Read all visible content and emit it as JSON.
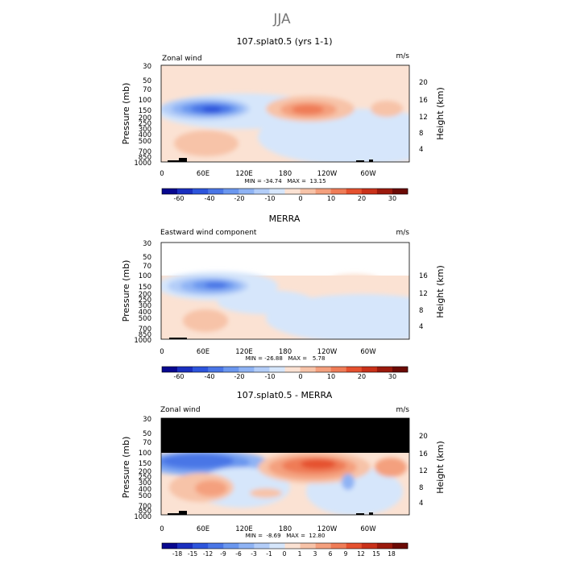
{
  "suptitle": "JJA",
  "chart_data": [
    {
      "type": "heatmap",
      "title": "107.splat0.5 (yrs 1-1)",
      "left_label": "Zonal wind",
      "right_label": "m/s",
      "ylabel": "Pressure (mb)",
      "ylabel_right": "Height (km)",
      "yticks": [
        "30",
        "50",
        "70",
        "100",
        "150",
        "200",
        "250",
        "300",
        "400",
        "500",
        "700",
        "850",
        "1000"
      ],
      "yticks_right": [
        "20",
        "16",
        "12",
        "8",
        "4"
      ],
      "xticks": [
        "0",
        "60E",
        "120E",
        "180",
        "120W",
        "60W"
      ],
      "stats": "MIN = -34.74   MAX =  13.15",
      "colorbar": [
        "-60",
        "-40",
        "-20",
        "-10",
        "0",
        "10",
        "20",
        "30"
      ],
      "ylim_mb": [
        1000,
        30
      ],
      "masked_above_mb": null
    },
    {
      "type": "heatmap",
      "title": "MERRA",
      "left_label": "Eastward wind component",
      "right_label": "m/s",
      "ylabel": "Pressure (mb)",
      "ylabel_right": "Height (km)",
      "yticks": [
        "30",
        "50",
        "70",
        "100",
        "150",
        "200",
        "250",
        "300",
        "400",
        "500",
        "700",
        "850",
        "1000"
      ],
      "yticks_right": [
        "16",
        "12",
        "8",
        "4"
      ],
      "xticks": [
        "0",
        "60E",
        "120E",
        "180",
        "120W",
        "60W"
      ],
      "stats": "MIN = -26.88   MAX =   5.78",
      "colorbar": [
        "-60",
        "-40",
        "-20",
        "-10",
        "0",
        "10",
        "20",
        "30"
      ],
      "ylim_mb": [
        1000,
        30
      ],
      "masked_above_mb": 100
    },
    {
      "type": "heatmap",
      "title": "107.splat0.5 - MERRA",
      "left_label": "Zonal wind",
      "right_label": "m/s",
      "ylabel": "Pressure (mb)",
      "ylabel_right": "Height (km)",
      "yticks": [
        "30",
        "50",
        "70",
        "100",
        "150",
        "200",
        "250",
        "300",
        "400",
        "500",
        "700",
        "850",
        "1000"
      ],
      "yticks_right": [
        "20",
        "16",
        "12",
        "8",
        "4"
      ],
      "xticks": [
        "0",
        "60E",
        "120E",
        "180",
        "120W",
        "60W"
      ],
      "stats": "MIN =  -8.69   MAX =  12.80",
      "colorbar": [
        "-18",
        "-15",
        "-12",
        "-9",
        "-6",
        "-3",
        "-1",
        "0",
        "1",
        "3",
        "6",
        "9",
        "12",
        "15",
        "18"
      ],
      "ylim_mb": [
        1000,
        30
      ],
      "masked_above_mb": 100
    }
  ],
  "colors": {
    "cb1": [
      "#08088f",
      "#1a2fbf",
      "#2d55dc",
      "#4a76e6",
      "#6b97ef",
      "#8fb3f4",
      "#b3cdf8",
      "#d6e6fb",
      "#fbe2d3",
      "#f7c3a8",
      "#f4a07e",
      "#ef7c57",
      "#e5512f",
      "#c9311a",
      "#9b1a0d",
      "#6b0a05"
    ],
    "cb3": [
      "#08088f",
      "#1a2fbf",
      "#2d55dc",
      "#4a76e6",
      "#6b97ef",
      "#8fb3f4",
      "#b3cdf8",
      "#d6e6fb",
      "#fbe2d3",
      "#f7c3a8",
      "#f4a07e",
      "#ef7c57",
      "#e5512f",
      "#c9311a",
      "#9b1a0d",
      "#6b0a05"
    ]
  }
}
